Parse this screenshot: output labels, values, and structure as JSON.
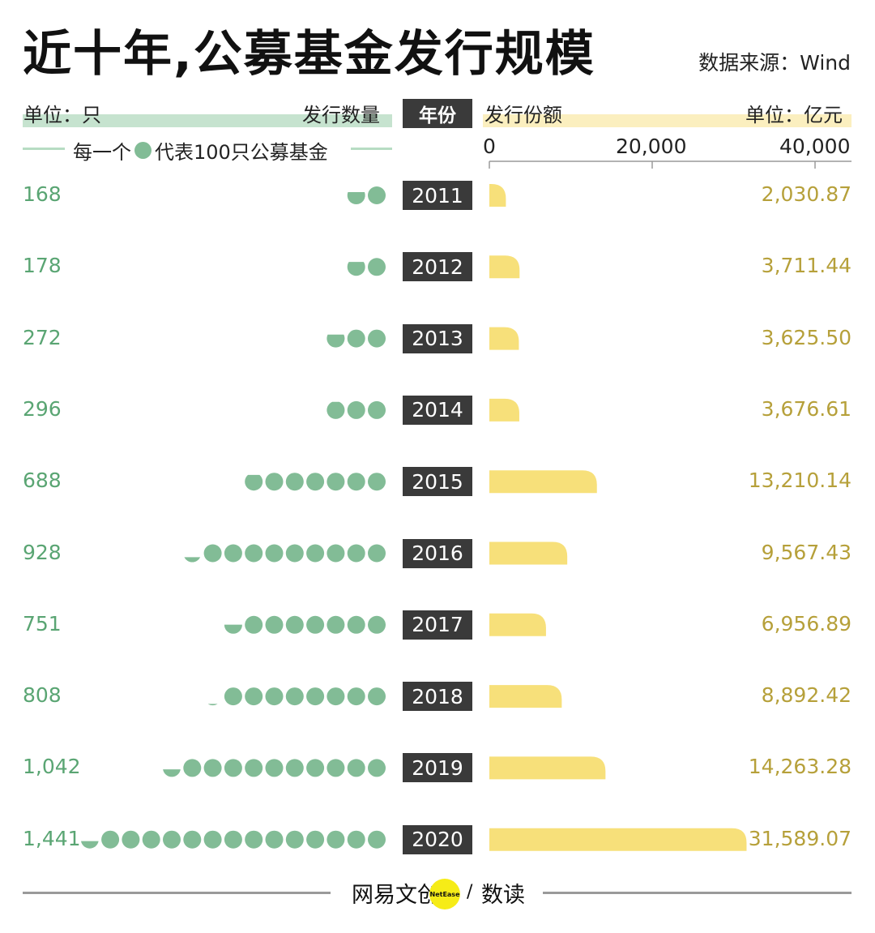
{
  "title": "近十年,公募基金发行规模",
  "source": "数据来源：Wind",
  "header": {
    "left_unit": "单位：只",
    "left_label": "发行数量",
    "center_label": "年份",
    "right_label": "发行份额",
    "right_unit": "单位：亿元",
    "legend_prefix": "每一个",
    "legend_suffix": "代表100只公募基金"
  },
  "colors": {
    "green": "#82bc96",
    "green_text": "#5aa573",
    "yellow": "#f7e07a",
    "yellow_text": "#b6a03a",
    "dark": "#3a3a3a"
  },
  "chart_data": {
    "type": "bar",
    "categories": [
      "2011",
      "2012",
      "2013",
      "2014",
      "2015",
      "2016",
      "2017",
      "2018",
      "2019",
      "2020"
    ],
    "series": [
      {
        "name": "发行数量",
        "unit": "只",
        "values": [
          168,
          178,
          272,
          296,
          688,
          928,
          751,
          808,
          1042,
          1441
        ],
        "labels": [
          "168",
          "178",
          "272",
          "296",
          "688",
          "928",
          "751",
          "808",
          "1,042",
          "1,441"
        ]
      },
      {
        "name": "发行份额",
        "unit": "亿元",
        "values": [
          2030.87,
          3711.44,
          3625.5,
          3676.61,
          13210.14,
          9567.43,
          6956.89,
          8892.42,
          14263.28,
          31589.07
        ],
        "labels": [
          "2,030.87",
          "3,711.44",
          "3,625.50",
          "3,676.61",
          "13,210.14",
          "9,567.43",
          "6,956.89",
          "8,892.42",
          "14,263.28",
          "31,589.07"
        ]
      }
    ],
    "xlim": [
      0,
      45000
    ],
    "ticks": [
      0,
      20000,
      40000
    ],
    "tick_labels": [
      "0",
      "20,000",
      "40,000"
    ]
  },
  "footer": {
    "brand": "网易文创",
    "badge": "NetEase",
    "sep": "/",
    "product": "数读"
  }
}
